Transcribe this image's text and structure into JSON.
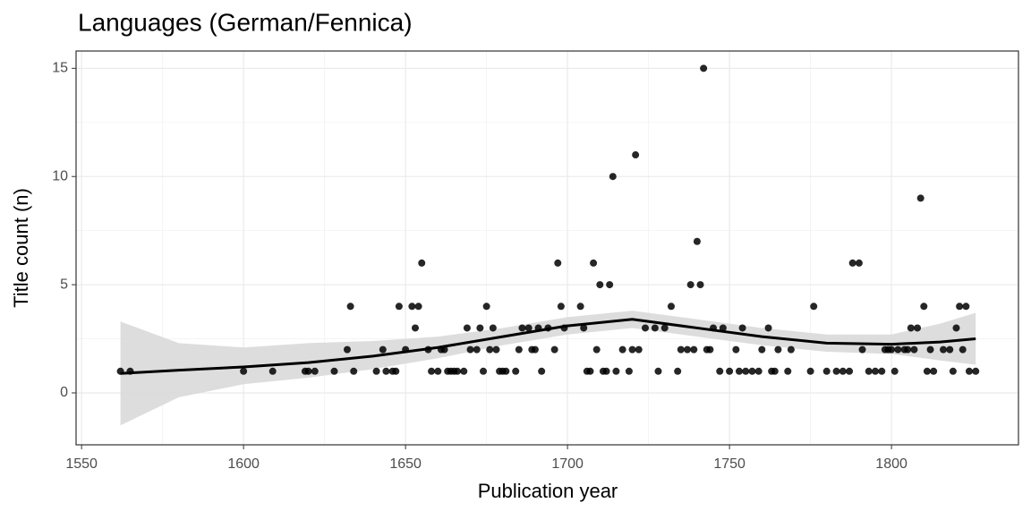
{
  "chart_data": {
    "type": "scatter",
    "title": "Languages (German/Fennica)",
    "x_label": "Publication year",
    "y_label": "Title count (n)",
    "x": [
      1562,
      1565,
      1600,
      1609,
      1619,
      1620,
      1622,
      1628,
      1632,
      1633,
      1634,
      1641,
      1643,
      1644,
      1646,
      1647,
      1648,
      1650,
      1652,
      1653,
      1654,
      1655,
      1657,
      1658,
      1660,
      1661,
      1662,
      1663,
      1664,
      1665,
      1666,
      1668,
      1669,
      1670,
      1672,
      1673,
      1674,
      1675,
      1676,
      1677,
      1678,
      1679,
      1680,
      1681,
      1684,
      1685,
      1686,
      1688,
      1689,
      1690,
      1691,
      1692,
      1694,
      1696,
      1697,
      1698,
      1699,
      1704,
      1705,
      1706,
      1707,
      1708,
      1709,
      1710,
      1711,
      1712,
      1713,
      1714,
      1715,
      1717,
      1719,
      1720,
      1721,
      1722,
      1724,
      1727,
      1728,
      1730,
      1732,
      1734,
      1735,
      1737,
      1738,
      1739,
      1740,
      1741,
      1742,
      1743,
      1744,
      1745,
      1747,
      1748,
      1750,
      1752,
      1753,
      1754,
      1755,
      1757,
      1759,
      1760,
      1762,
      1763,
      1764,
      1765,
      1768,
      1769,
      1775,
      1776,
      1780,
      1783,
      1785,
      1787,
      1788,
      1790,
      1791,
      1793,
      1795,
      1797,
      1798,
      1799,
      1800,
      1801,
      1802,
      1804,
      1805,
      1806,
      1807,
      1808,
      1809,
      1810,
      1811,
      1812,
      1813,
      1816,
      1818,
      1819,
      1820,
      1821,
      1822,
      1823,
      1824,
      1826
    ],
    "values": [
      1,
      1,
      1,
      1,
      1,
      1,
      1,
      1,
      2,
      4,
      1,
      1,
      2,
      1,
      1,
      1,
      4,
      2,
      4,
      3,
      4,
      6,
      2,
      1,
      1,
      2,
      2,
      1,
      1,
      1,
      1,
      1,
      3,
      2,
      2,
      3,
      1,
      4,
      2,
      3,
      2,
      1,
      1,
      1,
      1,
      2,
      3,
      3,
      2,
      2,
      3,
      1,
      3,
      2,
      6,
      4,
      3,
      4,
      3,
      1,
      1,
      6,
      2,
      5,
      1,
      1,
      5,
      10,
      1,
      2,
      1,
      2,
      11,
      2,
      3,
      3,
      1,
      3,
      4,
      1,
      2,
      2,
      5,
      2,
      7,
      5,
      15,
      2,
      2,
      3,
      1,
      3,
      1,
      2,
      1,
      3,
      1,
      1,
      1,
      2,
      3,
      1,
      1,
      2,
      1,
      2,
      1,
      4,
      1,
      1,
      1,
      1,
      6,
      6,
      2,
      1,
      1,
      1,
      2,
      2,
      2,
      1,
      2,
      2,
      2,
      3,
      2,
      3,
      9,
      4,
      1,
      2,
      1,
      2,
      2,
      1,
      3,
      4,
      2,
      4,
      1,
      1
    ],
    "color": "#000000",
    "smooth": {
      "x": [
        1562,
        1580,
        1600,
        1620,
        1640,
        1660,
        1680,
        1700,
        1720,
        1740,
        1760,
        1780,
        1800,
        1815,
        1826
      ],
      "values": [
        0.9,
        1.05,
        1.2,
        1.4,
        1.7,
        2.1,
        2.6,
        3.1,
        3.4,
        3.0,
        2.6,
        2.3,
        2.25,
        2.35,
        2.5
      ],
      "lower": [
        -1.5,
        -0.2,
        0.4,
        0.7,
        1.1,
        1.6,
        2.2,
        2.7,
        3.0,
        2.6,
        2.2,
        1.9,
        1.8,
        1.5,
        1.3
      ],
      "upper": [
        3.3,
        2.3,
        2.1,
        2.3,
        2.4,
        2.6,
        3.0,
        3.5,
        3.8,
        3.4,
        3.0,
        2.7,
        2.7,
        3.2,
        3.7
      ],
      "color": "#000000",
      "band_color": "#d9d9d9"
    },
    "xlim": [
      1548.3,
      1839.2
    ],
    "xticks": [
      1550,
      1600,
      1650,
      1700,
      1750,
      1800
    ],
    "ylim": [
      -2.4,
      15.8
    ],
    "yticks": [
      0,
      5,
      10,
      15
    ],
    "grid": true
  }
}
